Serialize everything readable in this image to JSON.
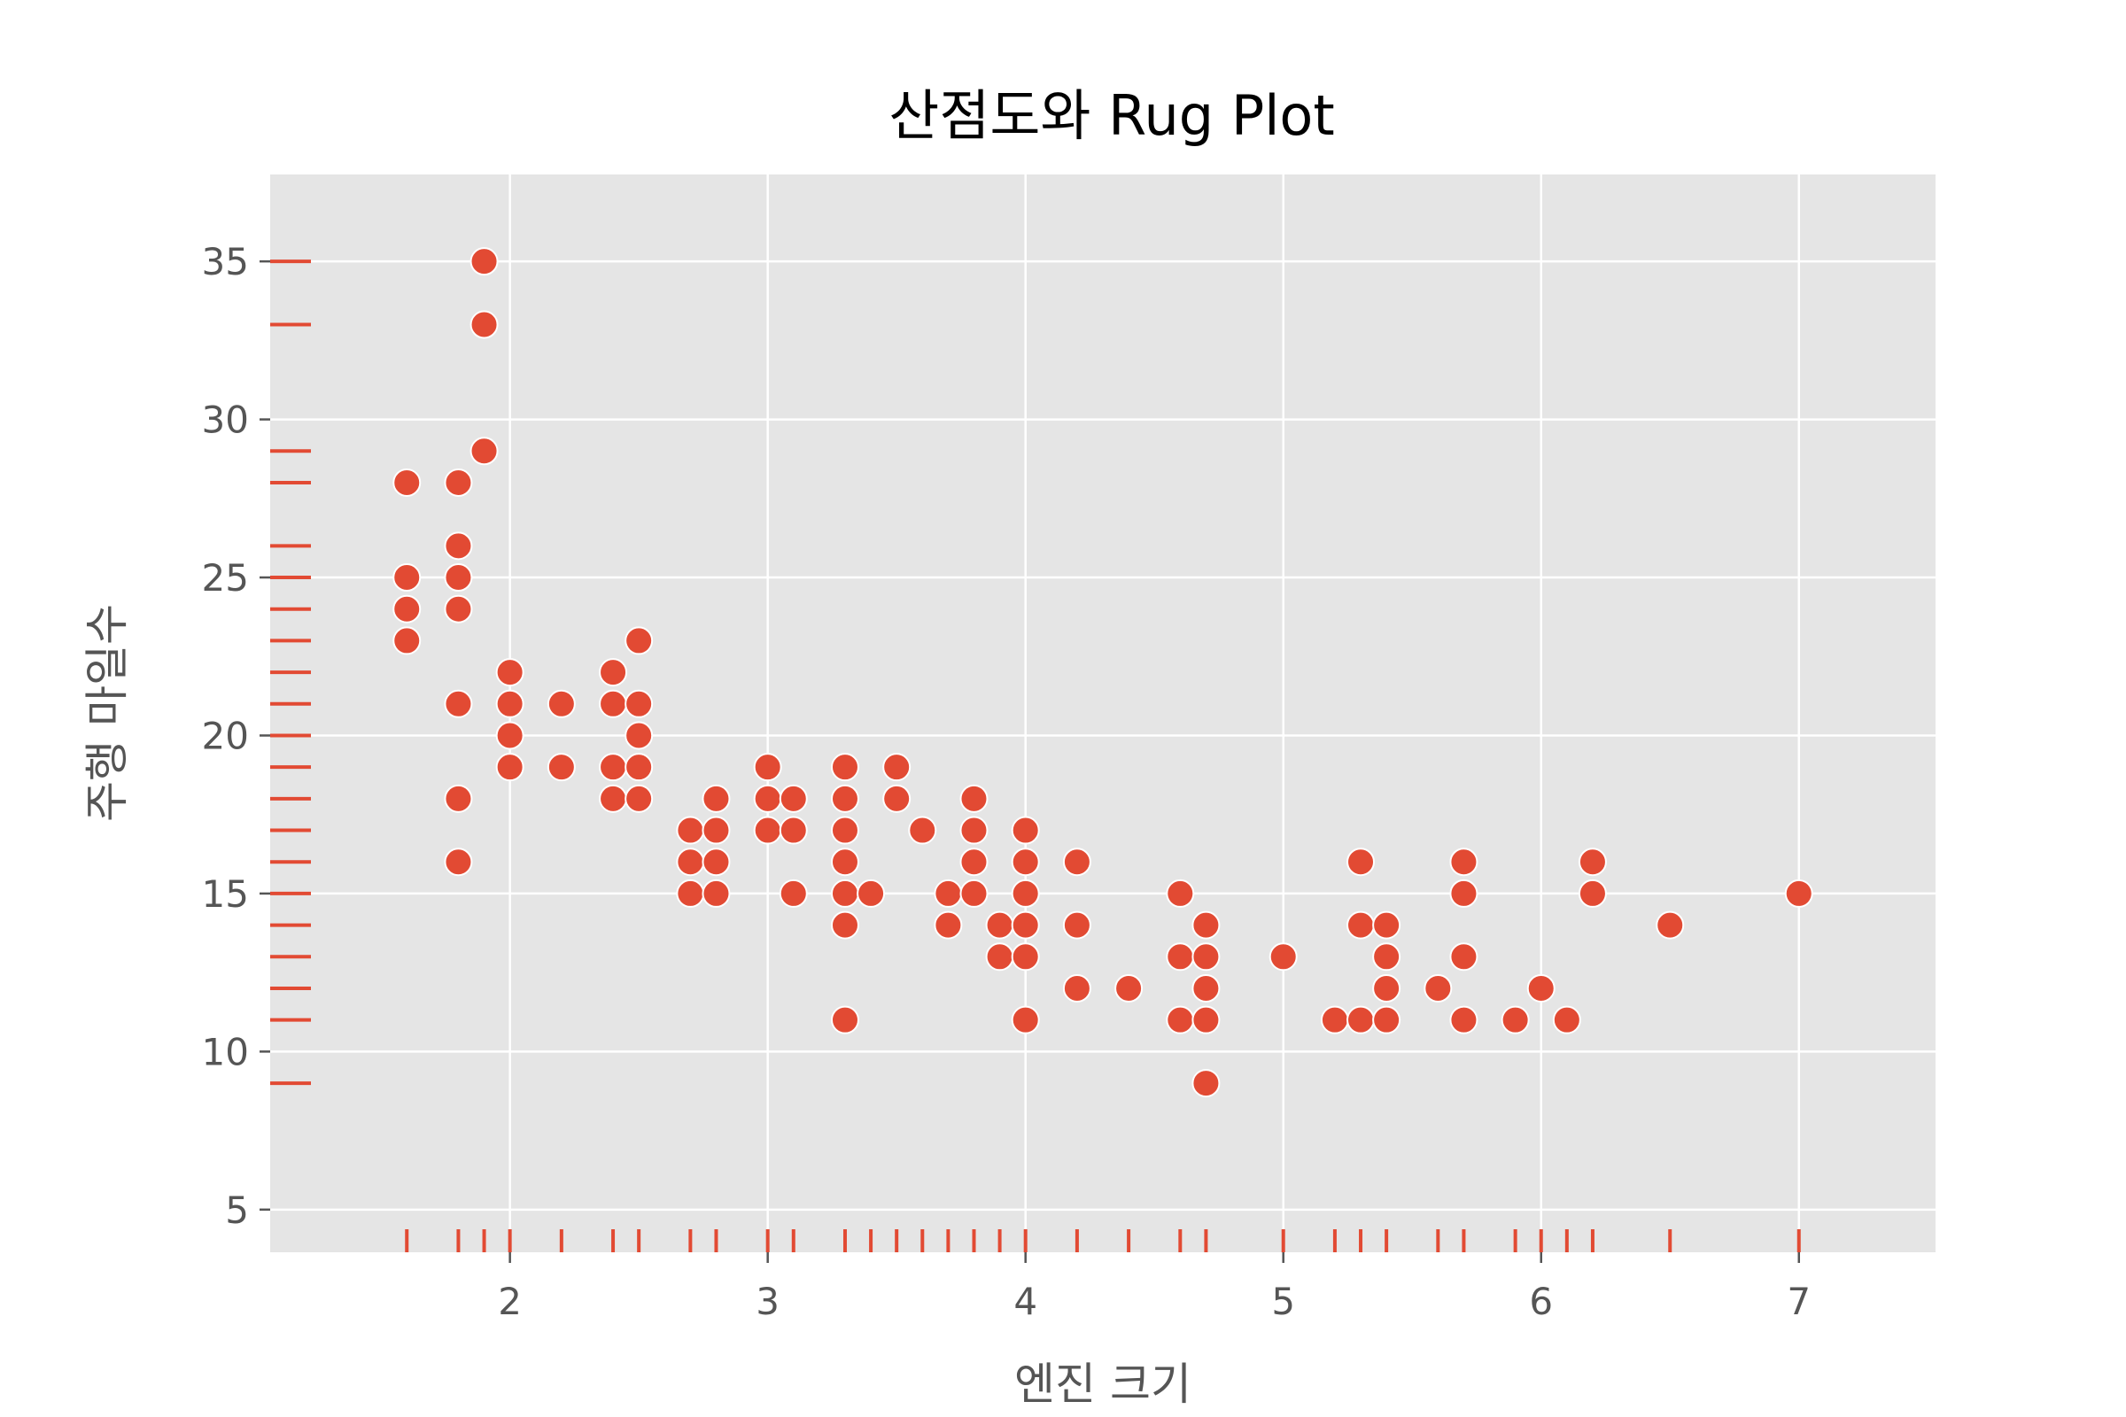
{
  "chart_data": {
    "type": "scatter",
    "title": "산점도와 Rug Plot",
    "xlabel": "엔진 크기",
    "ylabel": "주행 마일수",
    "xlim": [
      1.07,
      7.53
    ],
    "ylim": [
      3.65,
      37.75
    ],
    "xticks": [
      2,
      3,
      4,
      5,
      6,
      7
    ],
    "yticks": [
      5,
      10,
      15,
      20,
      25,
      30,
      35
    ],
    "grid": true,
    "legend": "none",
    "colors": {
      "background": "#E5E5E5",
      "grid": "#FFFFFF",
      "points": "#E24A33",
      "point_edge": "#FFFFFF",
      "rug": "#E24A33",
      "tick_marks": "#555555"
    },
    "points": [
      [
        1.6,
        28
      ],
      [
        1.6,
        25
      ],
      [
        1.6,
        24
      ],
      [
        1.6,
        23
      ],
      [
        1.8,
        28
      ],
      [
        1.8,
        26
      ],
      [
        1.8,
        25
      ],
      [
        1.8,
        24
      ],
      [
        1.8,
        21
      ],
      [
        1.8,
        18
      ],
      [
        1.8,
        16
      ],
      [
        1.9,
        35
      ],
      [
        1.9,
        33
      ],
      [
        1.9,
        29
      ],
      [
        2.0,
        22
      ],
      [
        2.0,
        21
      ],
      [
        2.0,
        20
      ],
      [
        2.0,
        19
      ],
      [
        2.2,
        21
      ],
      [
        2.2,
        19
      ],
      [
        2.4,
        22
      ],
      [
        2.4,
        21
      ],
      [
        2.4,
        19
      ],
      [
        2.4,
        18
      ],
      [
        2.5,
        23
      ],
      [
        2.5,
        21
      ],
      [
        2.5,
        20
      ],
      [
        2.5,
        19
      ],
      [
        2.5,
        18
      ],
      [
        2.7,
        17
      ],
      [
        2.7,
        16
      ],
      [
        2.7,
        15
      ],
      [
        2.8,
        18
      ],
      [
        2.8,
        17
      ],
      [
        2.8,
        16
      ],
      [
        2.8,
        15
      ],
      [
        3.0,
        19
      ],
      [
        3.0,
        18
      ],
      [
        3.0,
        17
      ],
      [
        3.1,
        18
      ],
      [
        3.1,
        17
      ],
      [
        3.1,
        15
      ],
      [
        3.3,
        19
      ],
      [
        3.3,
        18
      ],
      [
        3.3,
        17
      ],
      [
        3.3,
        16
      ],
      [
        3.3,
        15
      ],
      [
        3.3,
        14
      ],
      [
        3.3,
        11
      ],
      [
        3.4,
        15
      ],
      [
        3.5,
        19
      ],
      [
        3.5,
        18
      ],
      [
        3.6,
        17
      ],
      [
        3.7,
        15
      ],
      [
        3.7,
        14
      ],
      [
        3.8,
        18
      ],
      [
        3.8,
        17
      ],
      [
        3.8,
        16
      ],
      [
        3.8,
        15
      ],
      [
        3.9,
        14
      ],
      [
        3.9,
        13
      ],
      [
        4.0,
        17
      ],
      [
        4.0,
        16
      ],
      [
        4.0,
        15
      ],
      [
        4.0,
        14
      ],
      [
        4.0,
        13
      ],
      [
        4.0,
        11
      ],
      [
        4.2,
        16
      ],
      [
        4.2,
        14
      ],
      [
        4.2,
        12
      ],
      [
        4.4,
        12
      ],
      [
        4.6,
        15
      ],
      [
        4.6,
        13
      ],
      [
        4.6,
        11
      ],
      [
        4.7,
        14
      ],
      [
        4.7,
        13
      ],
      [
        4.7,
        12
      ],
      [
        4.7,
        11
      ],
      [
        4.7,
        9
      ],
      [
        5.0,
        13
      ],
      [
        5.2,
        11
      ],
      [
        5.3,
        16
      ],
      [
        5.3,
        14
      ],
      [
        5.3,
        11
      ],
      [
        5.4,
        14
      ],
      [
        5.4,
        13
      ],
      [
        5.4,
        12
      ],
      [
        5.4,
        11
      ],
      [
        5.6,
        12
      ],
      [
        5.7,
        16
      ],
      [
        5.7,
        15
      ],
      [
        5.7,
        13
      ],
      [
        5.7,
        11
      ],
      [
        5.9,
        11
      ],
      [
        6.0,
        12
      ],
      [
        6.1,
        11
      ],
      [
        6.2,
        16
      ],
      [
        6.2,
        15
      ],
      [
        6.5,
        14
      ],
      [
        7.0,
        15
      ]
    ],
    "rug_x": [
      1.6,
      1.8,
      1.9,
      2.0,
      2.2,
      2.4,
      2.5,
      2.7,
      2.8,
      3.0,
      3.1,
      3.3,
      3.4,
      3.5,
      3.6,
      3.7,
      3.8,
      3.9,
      4.0,
      4.2,
      4.4,
      4.6,
      4.7,
      5.0,
      5.2,
      5.3,
      5.4,
      5.6,
      5.7,
      5.9,
      6.0,
      6.1,
      6.2,
      6.5,
      7.0
    ],
    "rug_y": [
      9,
      11,
      12,
      13,
      14,
      15,
      16,
      17,
      18,
      19,
      20,
      21,
      22,
      23,
      24,
      25,
      26,
      28,
      29,
      33,
      35
    ]
  }
}
